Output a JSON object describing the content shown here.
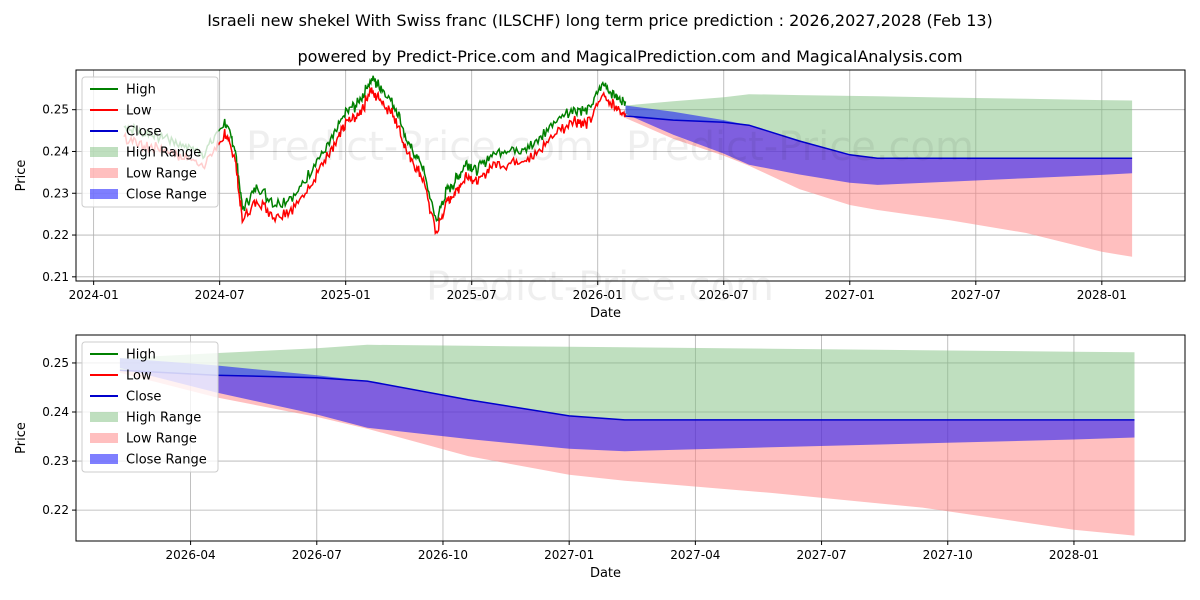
{
  "title": "Israeli new shekel With Swiss franc (ILSCHF) long term price prediction : 2026,2027,2028 (Feb 13)",
  "subtitle": "powered by Predict-Price.com and MagicalPrediction.com and MagicalAnalysis.com",
  "watermarks": [
    "Predict-Price.com",
    "Predict-Price.com",
    "Predict-Price.com"
  ],
  "colors": {
    "high": "#008000",
    "low": "#ff0000",
    "close": "#0000cc",
    "high_range": "#7fc07f",
    "low_range": "#ff7f7f",
    "close_range": "#0000ff"
  },
  "chart_data": [
    {
      "type": "line",
      "panel": "overview",
      "xlabel": "Date",
      "ylabel": "Price",
      "x_ticks": [
        "2024-01",
        "2024-07",
        "2025-01",
        "2025-07",
        "2026-01",
        "2026-07",
        "2027-01",
        "2027-07",
        "2028-01"
      ],
      "x_tick_values": [
        2024.0,
        2024.5,
        2025.0,
        2025.5,
        2026.0,
        2026.5,
        2027.0,
        2027.5,
        2028.0
      ],
      "xlim": [
        2023.93,
        2028.33
      ],
      "y_ticks": [
        "0.21",
        "0.22",
        "0.23",
        "0.24",
        "0.25"
      ],
      "y_tick_values": [
        0.21,
        0.22,
        0.23,
        0.24,
        0.25
      ],
      "ylim": [
        0.209,
        0.2595
      ],
      "grid": true,
      "legend": {
        "position": "top-left",
        "entries": [
          "High",
          "Low",
          "Close",
          "High Range",
          "Low Range",
          "Close Range"
        ]
      },
      "history_anchors": {
        "x": [
          2024.12,
          2024.2,
          2024.28,
          2024.36,
          2024.44,
          2024.52,
          2024.56,
          2024.59,
          2024.65,
          2024.72,
          2024.8,
          2024.88,
          2024.95,
          2025.0,
          2025.05,
          2025.1,
          2025.14,
          2025.2,
          2025.25,
          2025.3,
          2025.36,
          2025.4,
          2025.44,
          2025.48,
          2025.52,
          2025.58,
          2025.66,
          2025.74,
          2025.82,
          2025.9,
          2025.96,
          2026.02,
          2026.07,
          2026.11
        ],
        "close": [
          0.245,
          0.243,
          0.242,
          0.24,
          0.238,
          0.246,
          0.24,
          0.225,
          0.23,
          0.226,
          0.228,
          0.236,
          0.242,
          0.248,
          0.25,
          0.256,
          0.254,
          0.249,
          0.24,
          0.236,
          0.222,
          0.229,
          0.232,
          0.236,
          0.234,
          0.238,
          0.239,
          0.24,
          0.245,
          0.249,
          0.248,
          0.255,
          0.252,
          0.25
        ]
      },
      "forecast": {
        "x": [
          2026.11,
          2026.3,
          2026.5,
          2026.6,
          2026.8,
          2027.0,
          2027.11,
          2027.4,
          2027.7,
          2028.0,
          2028.12
        ],
        "close": [
          0.2485,
          0.2475,
          0.247,
          0.2463,
          0.2425,
          0.2392,
          0.2384,
          0.2384,
          0.2384,
          0.2384,
          0.2384
        ],
        "high_range_top": [
          0.251,
          0.252,
          0.253,
          0.2537,
          0.2535,
          0.2533,
          0.2532,
          0.2529,
          0.2526,
          0.2523,
          0.2522
        ],
        "close_range_top": [
          0.251,
          0.2495,
          0.2475,
          0.2463,
          0.2425,
          0.2392,
          0.2384,
          0.2384,
          0.2384,
          0.2384,
          0.2384
        ],
        "close_range_bottom": [
          0.249,
          0.244,
          0.2395,
          0.2368,
          0.2345,
          0.2325,
          0.232,
          0.2328,
          0.2336,
          0.2344,
          0.2348
        ],
        "low_range_bottom": [
          0.248,
          0.243,
          0.239,
          0.2366,
          0.231,
          0.2272,
          0.226,
          0.2235,
          0.2205,
          0.216,
          0.2148
        ]
      }
    },
    {
      "type": "line",
      "panel": "forecast-zoom",
      "xlabel": "Date",
      "ylabel": "Price",
      "x_ticks": [
        "2026-04",
        "2026-07",
        "2026-10",
        "2027-01",
        "2027-04",
        "2027-07",
        "2027-10",
        "2028-01"
      ],
      "x_tick_values": [
        2026.25,
        2026.5,
        2026.75,
        2027.0,
        2027.25,
        2027.5,
        2027.75,
        2028.0
      ],
      "xlim": [
        2026.023,
        2028.22
      ],
      "y_ticks": [
        "0.22",
        "0.23",
        "0.24",
        "0.25"
      ],
      "y_tick_values": [
        0.22,
        0.23,
        0.24,
        0.25
      ],
      "ylim": [
        0.2137,
        0.2557
      ],
      "grid": true,
      "legend": {
        "position": "top-left",
        "entries": [
          "High",
          "Low",
          "Close",
          "High Range",
          "Low Range",
          "Close Range"
        ]
      },
      "forecast": {
        "x": [
          2026.11,
          2026.3,
          2026.5,
          2026.6,
          2026.8,
          2027.0,
          2027.11,
          2027.4,
          2027.7,
          2028.0,
          2028.12
        ],
        "close": [
          0.2485,
          0.2475,
          0.247,
          0.2463,
          0.2425,
          0.2392,
          0.2384,
          0.2384,
          0.2384,
          0.2384,
          0.2384
        ],
        "high_range_top": [
          0.251,
          0.252,
          0.253,
          0.2537,
          0.2535,
          0.2533,
          0.2532,
          0.2529,
          0.2526,
          0.2523,
          0.2522
        ],
        "close_range_top": [
          0.251,
          0.2495,
          0.2475,
          0.2463,
          0.2425,
          0.2392,
          0.2384,
          0.2384,
          0.2384,
          0.2384,
          0.2384
        ],
        "close_range_bottom": [
          0.249,
          0.244,
          0.2395,
          0.2368,
          0.2345,
          0.2325,
          0.232,
          0.2328,
          0.2336,
          0.2344,
          0.2348
        ],
        "low_range_bottom": [
          0.248,
          0.243,
          0.239,
          0.2366,
          0.231,
          0.2272,
          0.226,
          0.2235,
          0.2205,
          0.216,
          0.2148
        ]
      }
    }
  ]
}
